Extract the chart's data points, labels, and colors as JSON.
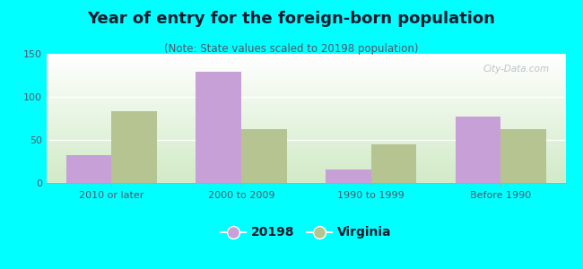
{
  "title": "Year of entry for the foreign-born population",
  "subtitle": "(Note: State values scaled to 20198 population)",
  "categories": [
    "2010 or later",
    "2000 to 2009",
    "1990 to 1999",
    "Before 1990"
  ],
  "values_20198": [
    32,
    129,
    16,
    77
  ],
  "values_virginia": [
    83,
    63,
    45,
    62
  ],
  "bar_color_20198": "#c8a0d8",
  "bar_color_virginia": "#b5c490",
  "legend_labels": [
    "20198",
    "Virginia"
  ],
  "ylim": [
    0,
    150
  ],
  "yticks": [
    0,
    50,
    100,
    150
  ],
  "background_outer": "#00FFFF",
  "bar_width": 0.35,
  "title_fontsize": 13,
  "subtitle_fontsize": 8.5,
  "tick_fontsize": 8,
  "legend_fontsize": 10,
  "title_color": "#1a1a2e",
  "subtitle_color": "#555566",
  "tick_color": "#555566"
}
